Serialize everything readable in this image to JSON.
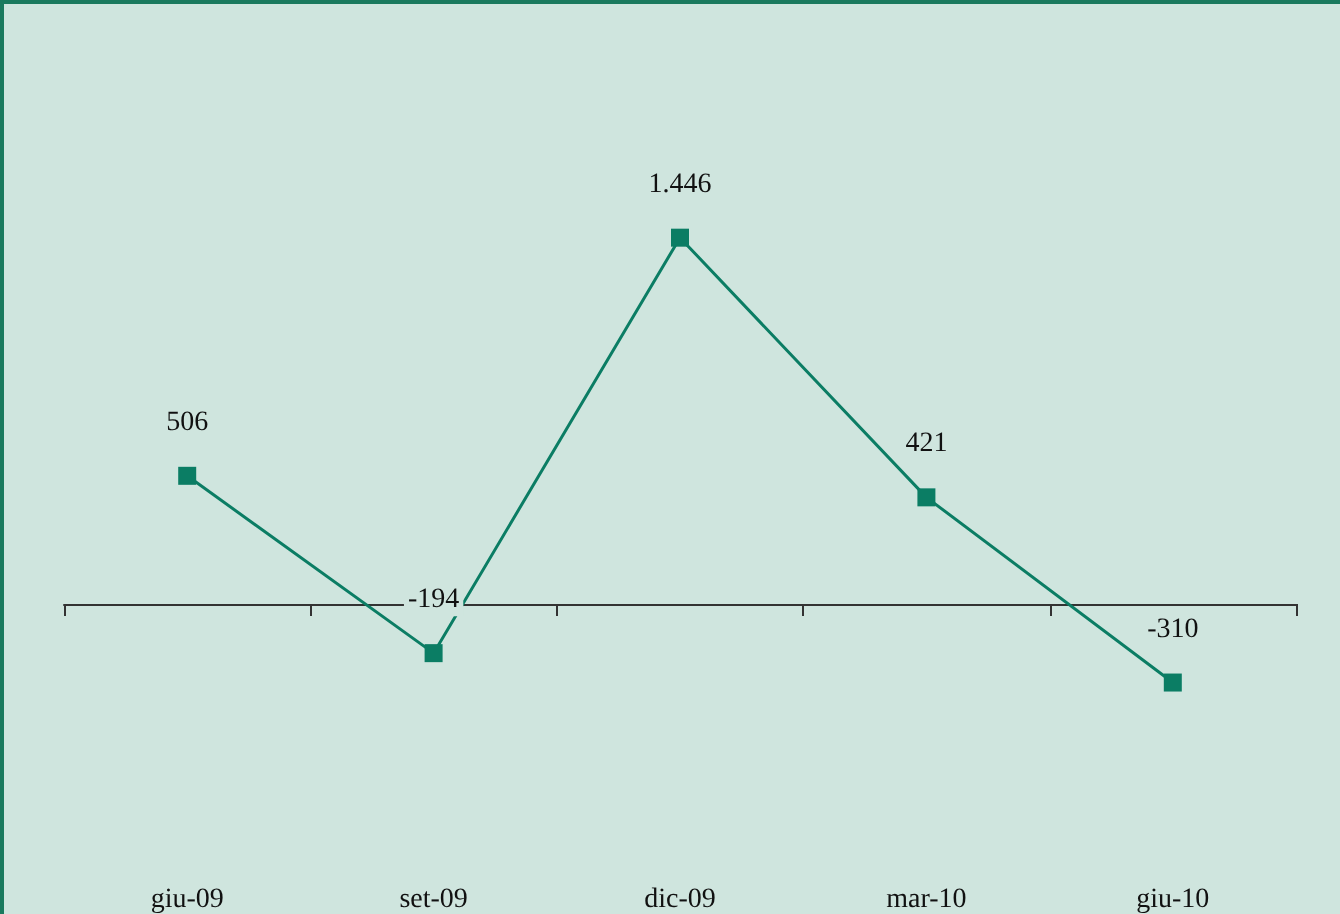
{
  "chart_data": {
    "type": "line",
    "categories": [
      "giu-09",
      "set-09",
      "dic-09",
      "mar-10",
      "giu-10"
    ],
    "series": [
      {
        "color": "#0b7d64",
        "values": [
          506,
          -194,
          1446,
          421,
          -310
        ],
        "value_labels": [
          "506",
          "-194",
          "1.446",
          "421",
          "-310"
        ]
      }
    ],
    "marker": "square",
    "line_style": "solid",
    "grid": false
  }
}
